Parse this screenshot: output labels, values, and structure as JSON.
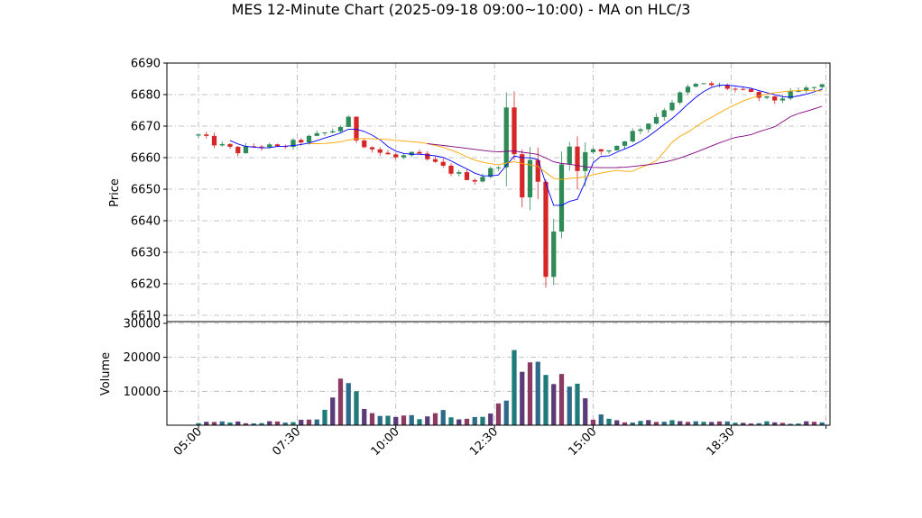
{
  "chart_data": {
    "type": "candlestick",
    "title": "MES 12-Minute Chart (2025-09-18 09:00~10:00) - MA on HLC/3",
    "price_panel": {
      "ylabel": "Price",
      "ylim": [
        6608,
        6690
      ],
      "yticks": [
        6610,
        6620,
        6630,
        6640,
        6650,
        6660,
        6670,
        6680,
        6690
      ],
      "grid": true
    },
    "volume_panel": {
      "ylabel": "Volume",
      "ylim": [
        0,
        30500
      ],
      "yticks": [
        10000,
        20000,
        30000
      ],
      "grid": true
    },
    "x_axis": {
      "tick_labels": [
        "05:00",
        "07:30",
        "10:00",
        "12:30",
        "15:00",
        "18:30"
      ],
      "tick_hours": [
        5,
        7.5,
        10,
        12.5,
        15,
        18.5
      ],
      "range_hours": [
        4.2,
        21.0
      ],
      "rotation_deg": 45
    },
    "candle_colors": {
      "up": "#2e8b57",
      "down": "#d62728"
    },
    "volume_colors": [
      "#1f7a7a",
      "#5b3a7a",
      "#8b3a62",
      "#2e6b8b"
    ],
    "ma_series_colors": [
      "#0000ff",
      "#ffa500",
      "#800080"
    ],
    "anchors": [
      [
        5.0,
        6667
      ],
      [
        5.5,
        6664
      ],
      [
        6.0,
        6662
      ],
      [
        6.5,
        6664
      ],
      [
        7.0,
        6663
      ],
      [
        7.5,
        6665
      ],
      [
        8.0,
        6667
      ],
      [
        8.5,
        6669
      ],
      [
        8.8,
        6672
      ],
      [
        9.0,
        6666
      ],
      [
        9.5,
        6662
      ],
      [
        10.0,
        6660
      ],
      [
        10.5,
        6661
      ],
      [
        11.0,
        6658
      ],
      [
        11.5,
        6655
      ],
      [
        12.0,
        6653
      ],
      [
        12.3,
        6655
      ],
      [
        12.6,
        6658
      ],
      [
        12.8,
        6672
      ],
      [
        12.9,
        6683
      ],
      [
        13.0,
        6660
      ],
      [
        13.3,
        6650
      ],
      [
        13.5,
        6665
      ],
      [
        13.7,
        6640
      ],
      [
        13.8,
        6620
      ],
      [
        13.9,
        6613
      ],
      [
        14.0,
        6640
      ],
      [
        14.2,
        6660
      ],
      [
        14.4,
        6665
      ],
      [
        14.7,
        6658
      ],
      [
        15.0,
        6662
      ],
      [
        15.3,
        6662
      ],
      [
        15.6,
        6664
      ],
      [
        16.0,
        6668
      ],
      [
        16.5,
        6672
      ],
      [
        17.0,
        6678
      ],
      [
        17.5,
        6683
      ],
      [
        18.0,
        6683
      ],
      [
        18.5,
        6682
      ],
      [
        19.0,
        6680
      ],
      [
        19.5,
        6678
      ],
      [
        20.0,
        6680
      ],
      [
        20.5,
        6682
      ],
      [
        20.9,
        6683
      ]
    ],
    "volume_anchors": [
      [
        5.0,
        800
      ],
      [
        7.0,
        900
      ],
      [
        8.0,
        1500
      ],
      [
        8.2,
        4000
      ],
      [
        8.4,
        12000
      ],
      [
        8.8,
        10000
      ],
      [
        9.3,
        6000
      ],
      [
        10.0,
        3000
      ],
      [
        11.5,
        3500
      ],
      [
        12.0,
        2000
      ],
      [
        12.5,
        3500
      ],
      [
        12.8,
        12000
      ],
      [
        13.0,
        18000
      ],
      [
        13.5,
        17000
      ],
      [
        14.0,
        20000
      ],
      [
        14.3,
        12000
      ],
      [
        14.8,
        9000
      ],
      [
        15.0,
        3000
      ],
      [
        15.5,
        1200
      ],
      [
        18.0,
        1000
      ],
      [
        20.9,
        800
      ]
    ]
  }
}
